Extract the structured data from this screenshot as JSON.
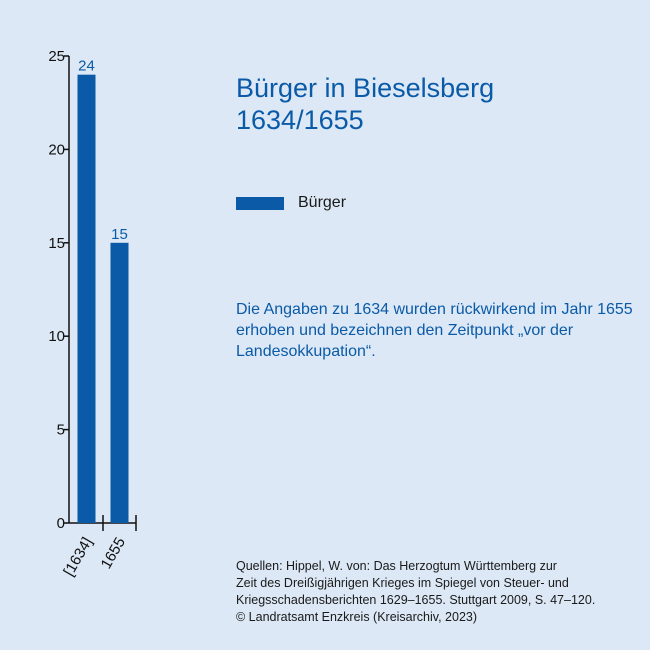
{
  "chart_data": {
    "type": "bar",
    "title": "Bürger in Bieselsberg",
    "subtitle": "1634/1655",
    "categories": [
      "[1634]",
      "1655"
    ],
    "series": [
      {
        "name": "Bürger",
        "values": [
          24,
          15
        ]
      }
    ],
    "yticks": [
      "0",
      "5",
      "10",
      "15",
      "20",
      "25"
    ],
    "ylim": [
      0,
      25
    ],
    "grid": false,
    "legend_position": "right",
    "color": "#0a5aa8"
  },
  "note": "Die Angaben zu 1634 wurden rückwirkend im Jahr 1655 erhoben und bezeichnen den Zeitpunkt „vor der Landesokkupation“.",
  "sources": {
    "lines": [
      "Quellen: Hippel, W. von: Das Herzogtum Württemberg zur",
      "Zeit des Dreißigjährigen Krieges im Spiegel von Steuer- und",
      "Kriegsschadensberichten 1629–1655. Stuttgart 2009, S. 47–120.",
      "© Landratsamt Enzkreis (Kreisarchiv, 2023)"
    ]
  }
}
